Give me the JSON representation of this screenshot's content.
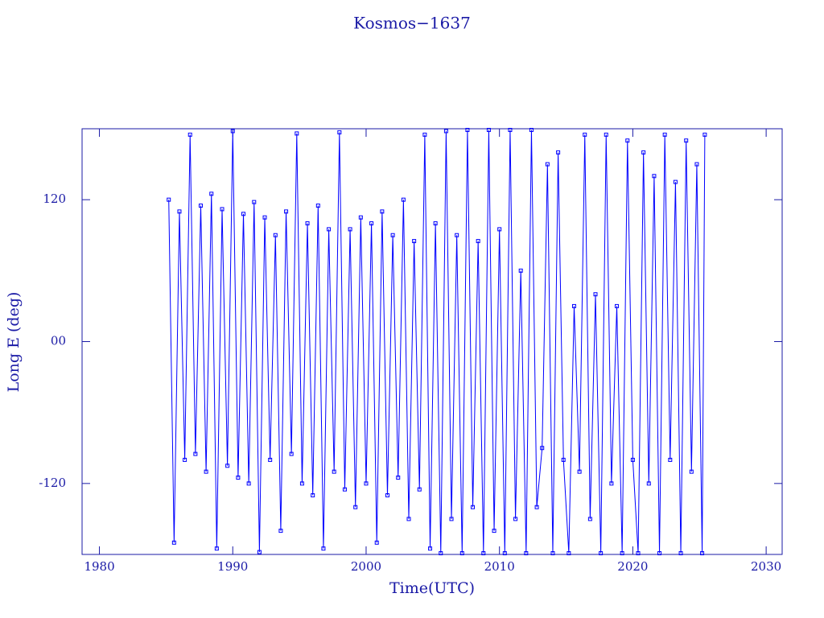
{
  "chart_data": {
    "type": "line",
    "title": "Kosmos−1637",
    "x_label": "Time(UTC)",
    "y_label": "Long E (deg)",
    "xlim": [
      1978.7,
      2031.2
    ],
    "ylim": [
      -180,
      180
    ],
    "xticks": [
      1980,
      1990,
      2000,
      2010,
      2020,
      2030
    ],
    "yticks": [
      120,
      {
        "value": 0,
        "label": "00"
      },
      -120
    ],
    "x": [
      1985.2,
      1985.6,
      1986.0,
      1986.4,
      1986.8,
      1987.2,
      1987.6,
      1988.0,
      1988.4,
      1988.8,
      1989.2,
      1989.6,
      1990.0,
      1990.4,
      1990.8,
      1991.2,
      1991.6,
      1992.0,
      1992.4,
      1992.8,
      1993.2,
      1993.6,
      1994.0,
      1994.4,
      1994.8,
      1995.2,
      1995.6,
      1996.0,
      1996.4,
      1996.8,
      1997.2,
      1997.6,
      1998.0,
      1998.4,
      1998.8,
      1999.2,
      1999.6,
      2000.0,
      2000.4,
      2000.8,
      2001.2,
      2001.6,
      2002.0,
      2002.4,
      2002.8,
      2003.2,
      2003.6,
      2004.0,
      2004.4,
      2004.8,
      2005.2,
      2005.6,
      2006.0,
      2006.4,
      2006.8,
      2007.2,
      2007.6,
      2008.0,
      2008.4,
      2008.8,
      2009.2,
      2009.6,
      2010.0,
      2010.4,
      2010.8,
      2011.2,
      2011.6,
      2012.0,
      2012.4,
      2012.8,
      2013.2,
      2013.6,
      2014.0,
      2014.4,
      2014.8,
      2015.2,
      2015.6,
      2016.0,
      2016.4,
      2016.8,
      2017.2,
      2017.6,
      2018.0,
      2018.4,
      2018.8,
      2019.2,
      2019.6,
      2020.0,
      2020.4,
      2020.8,
      2021.2,
      2021.6,
      2022.0,
      2022.4,
      2022.8,
      2023.2,
      2023.6,
      2024.0,
      2024.4,
      2024.8,
      2025.2,
      2025.4
    ],
    "series": [
      {
        "color": "#0000ff",
        "values": [
          120,
          -170,
          110,
          -100,
          175,
          -95,
          115,
          -110,
          125,
          -175,
          112,
          -105,
          178,
          -115,
          108,
          -120,
          118,
          -178,
          105,
          -100,
          90,
          -160,
          110,
          -95,
          176,
          -120,
          100,
          -130,
          115,
          -175,
          95,
          -110,
          177,
          -125,
          95,
          -140,
          105,
          -120,
          100,
          -170,
          110,
          -130,
          90,
          -115,
          120,
          -150,
          85,
          -125,
          175,
          -175,
          100,
          -179,
          178,
          -150,
          90,
          -179,
          179,
          -140,
          85,
          -179,
          179,
          -160,
          95,
          -179,
          179,
          -150,
          60,
          -179,
          179,
          -140,
          -90,
          150,
          -179,
          160,
          -100,
          -179,
          30,
          -110,
          175,
          -150,
          40,
          -179,
          175,
          -120,
          30,
          -179,
          170,
          -100,
          -179,
          160,
          -120,
          140,
          -179,
          175,
          -100,
          135,
          -179,
          170,
          -110,
          150,
          -179,
          175
        ]
      }
    ]
  }
}
